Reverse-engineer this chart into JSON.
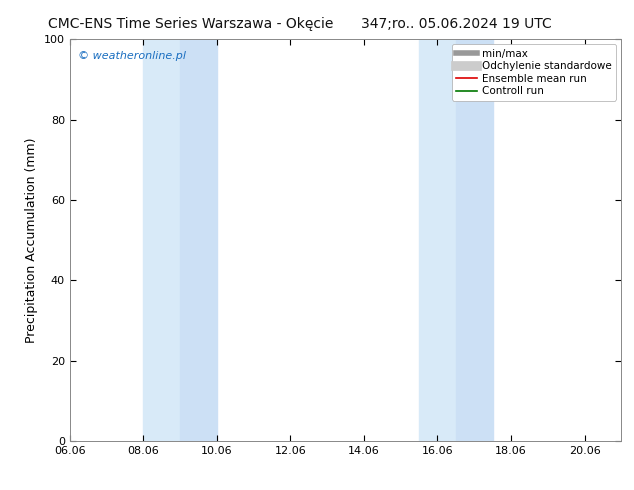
{
  "title_left": "CMC-ENS Time Series Warszawa - Okęcie",
  "title_right": "347;ro.. 05.06.2024 19 UTC",
  "ylabel": "Precipitation Accumulation (mm)",
  "watermark": "© weatheronline.pl",
  "watermark_color": "#1a6ec0",
  "background_color": "#ffffff",
  "plot_bg_color": "#ffffff",
  "ylim": [
    0,
    100
  ],
  "yticks": [
    0,
    20,
    40,
    60,
    80,
    100
  ],
  "xlim": [
    0,
    15
  ],
  "xtick_positions": [
    0,
    2,
    4,
    6,
    8,
    10,
    12,
    14
  ],
  "xlabels": [
    "06.06",
    "08.06",
    "10.06",
    "12.06",
    "14.06",
    "16.06",
    "18.06",
    "20.06"
  ],
  "shaded_regions": [
    {
      "x_start": 2.0,
      "x_end": 3.0,
      "color": "#d8eaf8"
    },
    {
      "x_start": 3.0,
      "x_end": 4.0,
      "color": "#cce0f5"
    },
    {
      "x_start": 9.5,
      "x_end": 10.5,
      "color": "#d8eaf8"
    },
    {
      "x_start": 10.5,
      "x_end": 11.5,
      "color": "#cce0f5"
    }
  ],
  "legend_entries": [
    {
      "label": "min/max",
      "color": "#999999",
      "linewidth": 4
    },
    {
      "label": "Odchylenie standardowe",
      "color": "#cccccc",
      "linewidth": 7
    },
    {
      "label": "Ensemble mean run",
      "color": "#dd0000",
      "linewidth": 1.2
    },
    {
      "label": "Controll run",
      "color": "#007700",
      "linewidth": 1.2
    }
  ],
  "title_fontsize": 10,
  "axis_label_fontsize": 9,
  "tick_fontsize": 8,
  "legend_fontsize": 7.5
}
